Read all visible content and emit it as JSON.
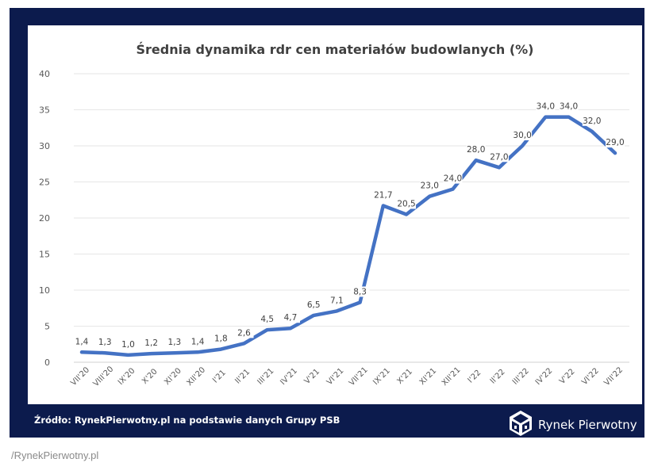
{
  "chart_data": {
    "type": "line",
    "title": "Średnia dynamika rdr cen materiałów budowlanych (%)",
    "xlabel": "",
    "ylabel": "",
    "categories": [
      "VII'20",
      "VIII'20",
      "IX'20",
      "X'20",
      "XI'20",
      "XII'20",
      "I'21",
      "II'21",
      "III'21",
      "IV'21",
      "V'21",
      "VI'21",
      "VII'21",
      "IX'21",
      "X'21",
      "XI'21",
      "XII'21",
      "I'22",
      "II'22",
      "III'22",
      "IV'22",
      "V'22",
      "VI'22",
      "VII'22"
    ],
    "series": [
      {
        "values": [
          1.4,
          1.3,
          1.0,
          1.2,
          1.3,
          1.4,
          1.8,
          2.6,
          4.5,
          4.7,
          6.5,
          7.1,
          8.3,
          21.7,
          20.5,
          23.0,
          24.0,
          28.0,
          27.0,
          30.0,
          34.0,
          34.0,
          32.0,
          29.0
        ]
      }
    ],
    "data_labels": [
      "1,4",
      "1,3",
      "1,0",
      "1,2",
      "1,3",
      "1,4",
      "1,8",
      "2,6",
      "4,5",
      "4,7",
      "6,5",
      "7,1",
      "8,3",
      "21,7",
      "20,5",
      "23,0",
      "24,0",
      "28,0",
      "27,0",
      "30,0",
      "34,0",
      "34,0",
      "32,0",
      "29,0"
    ],
    "ylim": [
      0,
      40
    ],
    "yticks": [
      0,
      5,
      10,
      15,
      20,
      25,
      30,
      35,
      40
    ],
    "grid": true,
    "line_color": "#4472c4"
  },
  "footer": {
    "source": "Źródło: RynekPierwotny.pl na podstawie danych Grupy PSB",
    "brand": "Rynek Pierwotny"
  },
  "caption": "/RynekPierwotny.pl",
  "colors": {
    "frame": "#0c1b4d",
    "panel": "#ffffff",
    "text": "#595959",
    "title": "#404040"
  }
}
